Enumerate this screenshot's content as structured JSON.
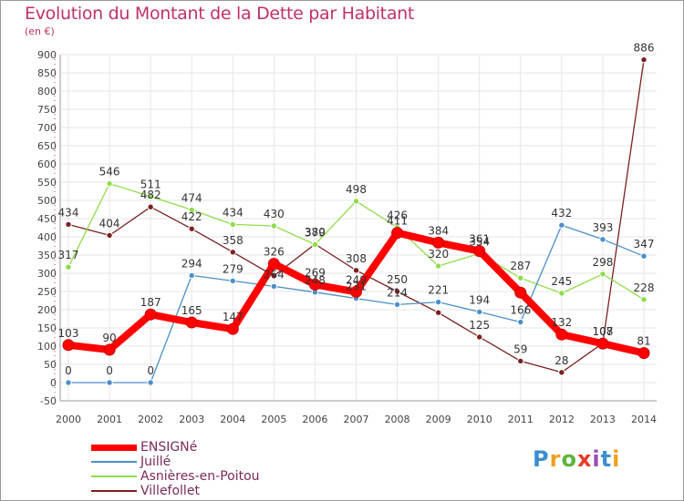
{
  "header": {
    "title": "Evolution du Montant de la Dette par Habitant",
    "unit": "(en €)"
  },
  "logo": {
    "text": "Proxiti",
    "colors": [
      "#3a8fd0",
      "#f0a020",
      "#5bb53b",
      "#e83a2a",
      "#9b4fb0"
    ]
  },
  "chart_data": {
    "type": "line",
    "x": [
      "2000",
      "2001",
      "2002",
      "2003",
      "2004",
      "2005",
      "2006",
      "2007",
      "2008",
      "2009",
      "2010",
      "2011",
      "2012",
      "2013",
      "2014"
    ],
    "ylim": [
      -50,
      900
    ],
    "yticks": [
      -50,
      0,
      50,
      100,
      150,
      200,
      250,
      300,
      350,
      400,
      450,
      500,
      550,
      600,
      650,
      700,
      750,
      800,
      850,
      900
    ],
    "grid": true,
    "legend_position": "bottom-left",
    "series": [
      {
        "name": "ENSIGNé",
        "color": "#ff0000",
        "bold": true,
        "values": [
          103,
          90,
          187,
          165,
          147,
          326,
          269,
          249,
          411,
          384,
          361,
          247,
          132,
          107,
          81
        ],
        "labels": [
          "103",
          "90",
          "187",
          "165",
          "147",
          "326",
          "269",
          "249",
          "411",
          "384",
          "361",
          "",
          "132",
          "107",
          "81"
        ]
      },
      {
        "name": "Juillé",
        "color": "#4a8fca",
        "values": [
          0,
          0,
          0,
          294,
          279,
          264,
          248,
          231,
          214,
          221,
          194,
          166,
          432,
          393,
          347
        ],
        "labels": [
          "0",
          "0",
          "0",
          "294",
          "279",
          "264",
          "248",
          "231",
          "214",
          "221",
          "194",
          "166",
          "432",
          "393",
          "347"
        ]
      },
      {
        "name": "Asnières-en-Poitou",
        "color": "#8fdc4a",
        "values": [
          317,
          546,
          511,
          474,
          434,
          430,
          379,
          498,
          426,
          320,
          354,
          287,
          245,
          298,
          228
        ],
        "labels": [
          "317",
          "546",
          "511",
          "474",
          "434",
          "430",
          "379",
          "498",
          "426",
          "320",
          "354",
          "287",
          "245",
          "298",
          "228"
        ]
      },
      {
        "name": "Villefollet",
        "color": "#7a2020",
        "values": [
          434,
          404,
          482,
          422,
          358,
          293,
          380,
          308,
          250,
          192,
          125,
          59,
          28,
          108,
          886
        ],
        "labels": [
          "434",
          "404",
          "482",
          "422",
          "358",
          "",
          "380",
          "308",
          "250",
          "",
          "125",
          "59",
          "28",
          "108",
          "886"
        ]
      }
    ]
  }
}
